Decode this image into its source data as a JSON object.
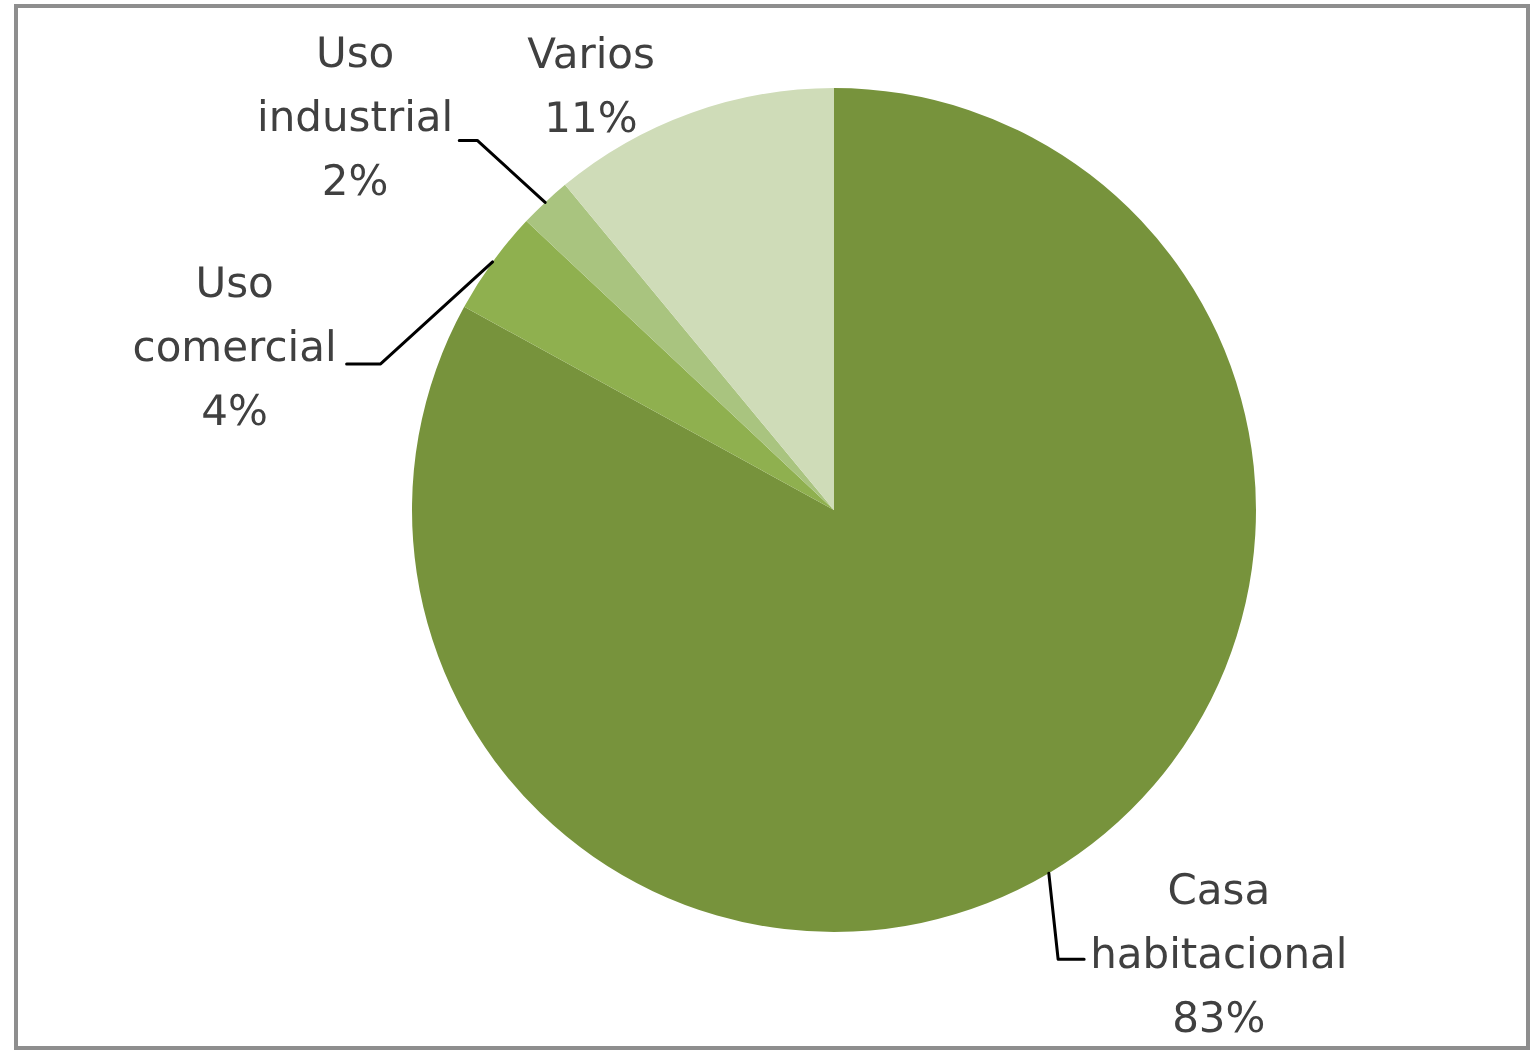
{
  "chart_data": {
    "type": "pie",
    "categories": [
      "Casa habitacional",
      "Uso comercial",
      "Uso industrial",
      "Varios"
    ],
    "values": [
      83,
      4,
      2,
      11
    ],
    "colors": [
      "#77933c",
      "#8fb04f",
      "#a9c47f",
      "#cfdcb8"
    ],
    "value_labels": [
      "83%",
      "4%",
      "2%",
      "11%"
    ],
    "legend": false
  }
}
